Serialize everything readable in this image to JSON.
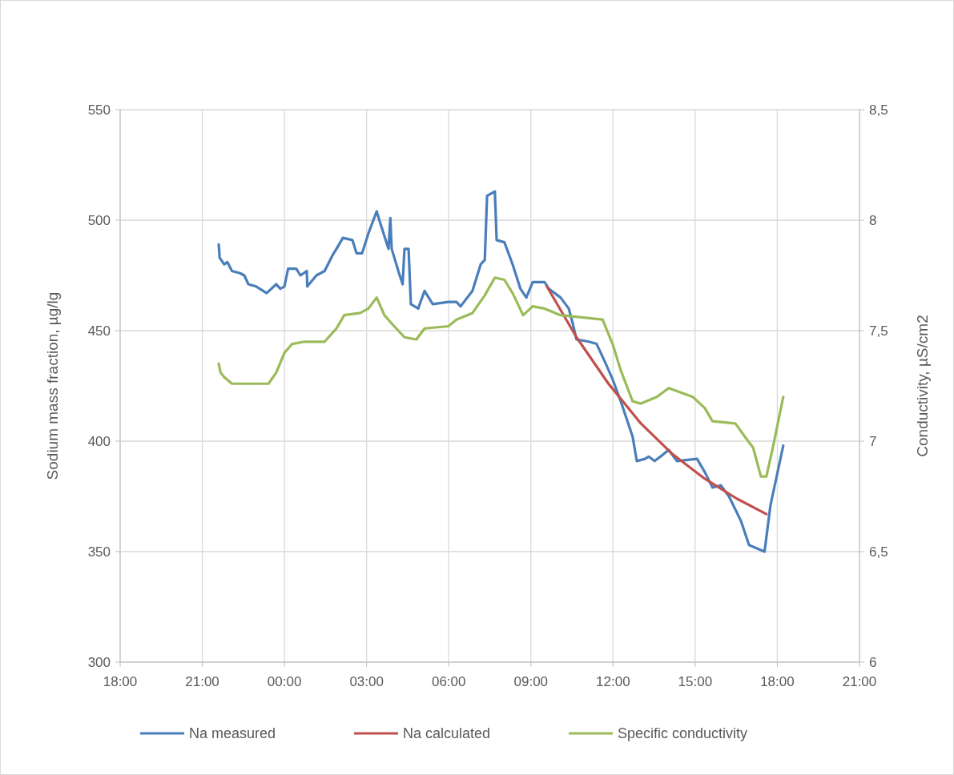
{
  "chart_data": {
    "type": "line",
    "ylabel": "Sodium mass fraction, µg/lg",
    "y2label": "Conductivity, µS/cm2",
    "xlim": [
      "2000-01-01T18:00",
      "2000-01-02T21:00"
    ],
    "xticks": [
      {
        "value": "2000-01-01T18:00",
        "label": "18:00"
      },
      {
        "value": "2000-01-01T21:00",
        "label": "21:00"
      },
      {
        "value": "2000-01-02T00:00",
        "label": "00:00"
      },
      {
        "value": "2000-01-02T03:00",
        "label": "03:00"
      },
      {
        "value": "2000-01-02T06:00",
        "label": "06:00"
      },
      {
        "value": "2000-01-02T09:00",
        "label": "09:00"
      },
      {
        "value": "2000-01-02T12:00",
        "label": "12:00"
      },
      {
        "value": "2000-01-02T15:00",
        "label": "15:00"
      },
      {
        "value": "2000-01-02T18:00",
        "label": "18:00"
      },
      {
        "value": "2000-01-02T21:00",
        "label": "21:00"
      }
    ],
    "ylim": [
      300,
      550
    ],
    "yticks": [
      300,
      350,
      400,
      450,
      500,
      550
    ],
    "y2lim": [
      6,
      8.5
    ],
    "y2ticks": [
      6,
      {
        "value": 6.5,
        "label": "6,5"
      },
      7,
      {
        "value": 7.5,
        "label": "7,5"
      },
      8,
      {
        "value": 8.5,
        "label": "8,5"
      }
    ],
    "grid": true,
    "legend": "bottom",
    "series": [
      {
        "name": "Na measured",
        "color": "#4a7ebb",
        "x": [
          "2000-01-01T21:36",
          "2000-01-01T21:38",
          "2000-01-01T21:48",
          "2000-01-01T21:55",
          "2000-01-01T22:05",
          "2000-01-01T22:23",
          "2000-01-01T22:32",
          "2000-01-01T22:41",
          "2000-01-01T22:58",
          "2000-01-01T23:21",
          "2000-01-01T23:42",
          "2000-01-01T23:51",
          "2000-01-02T00:00",
          "2000-01-02T00:08",
          "2000-01-02T00:26",
          "2000-01-02T00:35",
          "2000-01-02T00:49",
          "2000-01-02T00:50",
          "2000-01-02T01:10",
          "2000-01-02T01:28",
          "2000-01-02T01:45",
          "2000-01-02T01:54",
          "2000-01-02T02:08",
          "2000-01-02T02:29",
          "2000-01-02T02:38",
          "2000-01-02T02:50",
          "2000-01-02T03:04",
          "2000-01-02T03:22",
          "2000-01-02T03:31",
          "2000-01-02T03:48",
          "2000-01-02T03:52",
          "2000-01-02T03:55",
          "2000-01-02T04:11",
          "2000-01-02T04:19",
          "2000-01-02T04:23",
          "2000-01-02T04:32",
          "2000-01-02T04:37",
          "2000-01-02T04:53",
          "2000-01-02T05:07",
          "2000-01-02T05:25",
          "2000-01-02T05:59",
          "2000-01-02T06:17",
          "2000-01-02T06:26",
          "2000-01-02T06:52",
          "2000-01-02T07:10",
          "2000-01-02T07:19",
          "2000-01-02T07:24",
          "2000-01-02T07:41",
          "2000-01-02T07:45",
          "2000-01-02T08:02",
          "2000-01-02T08:20",
          "2000-01-02T08:37",
          "2000-01-02T08:50",
          "2000-01-02T09:04",
          "2000-01-02T09:30",
          "2000-01-02T09:39",
          "2000-01-02T10:05",
          "2000-01-02T10:23",
          "2000-01-02T10:32",
          "2000-01-02T10:40",
          "2000-01-02T11:07",
          "2000-01-02T11:24",
          "2000-01-02T11:42",
          "2000-01-02T11:59",
          "2000-01-02T12:17",
          "2000-01-02T12:43",
          "2000-01-02T12:52",
          "2000-01-02T13:10",
          "2000-01-02T13:18",
          "2000-01-02T13:31",
          "2000-01-02T13:44",
          "2000-01-02T14:02",
          "2000-01-02T14:20",
          "2000-01-02T15:04",
          "2000-01-02T15:21",
          "2000-01-02T15:38",
          "2000-01-02T15:56",
          "2000-01-02T16:14",
          "2000-01-02T16:40",
          "2000-01-02T16:58",
          "2000-01-02T17:32",
          "2000-01-02T17:45",
          "2000-01-02T18:13"
        ],
        "values": [
          489,
          483,
          480,
          481,
          477,
          476,
          475,
          471,
          470,
          467,
          471,
          469,
          470,
          478,
          478,
          475,
          477,
          470,
          475,
          477,
          484,
          487,
          492,
          491,
          485,
          485,
          494,
          504,
          498,
          487,
          501,
          487,
          476,
          471,
          487,
          487,
          462,
          460,
          468,
          462,
          463,
          463,
          461,
          468,
          480,
          482,
          511,
          513,
          491,
          490,
          480,
          469,
          465,
          472,
          472,
          469,
          465,
          460,
          453,
          446,
          445,
          444,
          436,
          428,
          418,
          402,
          391,
          392,
          393,
          391,
          393,
          396,
          391,
          392,
          386,
          379,
          380,
          375,
          364,
          353,
          350,
          371,
          398
        ]
      },
      {
        "name": "Na calculated",
        "color": "#c0504d",
        "x": [
          "2000-01-02T09:35",
          "2000-01-02T10:40",
          "2000-01-02T11:50",
          "2000-01-02T13:01",
          "2000-01-02T14:11",
          "2000-01-02T15:21",
          "2000-01-02T16:31",
          "2000-01-02T17:36"
        ],
        "values": [
          470,
          447,
          426,
          408,
          394,
          383,
          374,
          367
        ]
      },
      {
        "name": "Specific conductivity",
        "color": "#9bbb59",
        "axis": "y2",
        "x": [
          "2000-01-01T21:36",
          "2000-01-01T21:40",
          "2000-01-01T21:48",
          "2000-01-01T22:05",
          "2000-01-01T23:25",
          "2000-01-01T23:42",
          "2000-01-02T00:00",
          "2000-01-02T00:17",
          "2000-01-02T00:44",
          "2000-01-02T01:28",
          "2000-01-02T01:54",
          "2000-01-02T02:11",
          "2000-01-02T02:46",
          "2000-01-02T03:04",
          "2000-01-02T03:22",
          "2000-01-02T03:39",
          "2000-01-02T03:56",
          "2000-01-02T04:23",
          "2000-01-02T04:49",
          "2000-01-02T05:07",
          "2000-01-02T05:59",
          "2000-01-02T06:17",
          "2000-01-02T06:52",
          "2000-01-02T07:19",
          "2000-01-02T07:41",
          "2000-01-02T08:02",
          "2000-01-02T08:20",
          "2000-01-02T08:43",
          "2000-01-02T09:04",
          "2000-01-02T09:30",
          "2000-01-02T10:05",
          "2000-01-02T11:37",
          "2000-01-02T11:59",
          "2000-01-02T12:17",
          "2000-01-02T12:43",
          "2000-01-02T13:01",
          "2000-01-02T13:36",
          "2000-01-02T14:02",
          "2000-01-02T14:55",
          "2000-01-02T15:21",
          "2000-01-02T15:38",
          "2000-01-02T16:28",
          "2000-01-02T16:49",
          "2000-01-02T17:07",
          "2000-01-02T17:24",
          "2000-01-02T17:36",
          "2000-01-02T17:50",
          "2000-01-02T18:13"
        ],
        "values": [
          7.35,
          7.31,
          7.29,
          7.26,
          7.26,
          7.31,
          7.4,
          7.44,
          7.45,
          7.45,
          7.51,
          7.57,
          7.58,
          7.6,
          7.65,
          7.57,
          7.53,
          7.47,
          7.46,
          7.51,
          7.52,
          7.55,
          7.58,
          7.66,
          7.74,
          7.73,
          7.67,
          7.57,
          7.61,
          7.6,
          7.57,
          7.55,
          7.44,
          7.32,
          7.18,
          7.17,
          7.2,
          7.24,
          7.2,
          7.15,
          7.09,
          7.08,
          7.02,
          6.97,
          6.84,
          6.84,
          6.97,
          7.2
        ]
      }
    ]
  }
}
